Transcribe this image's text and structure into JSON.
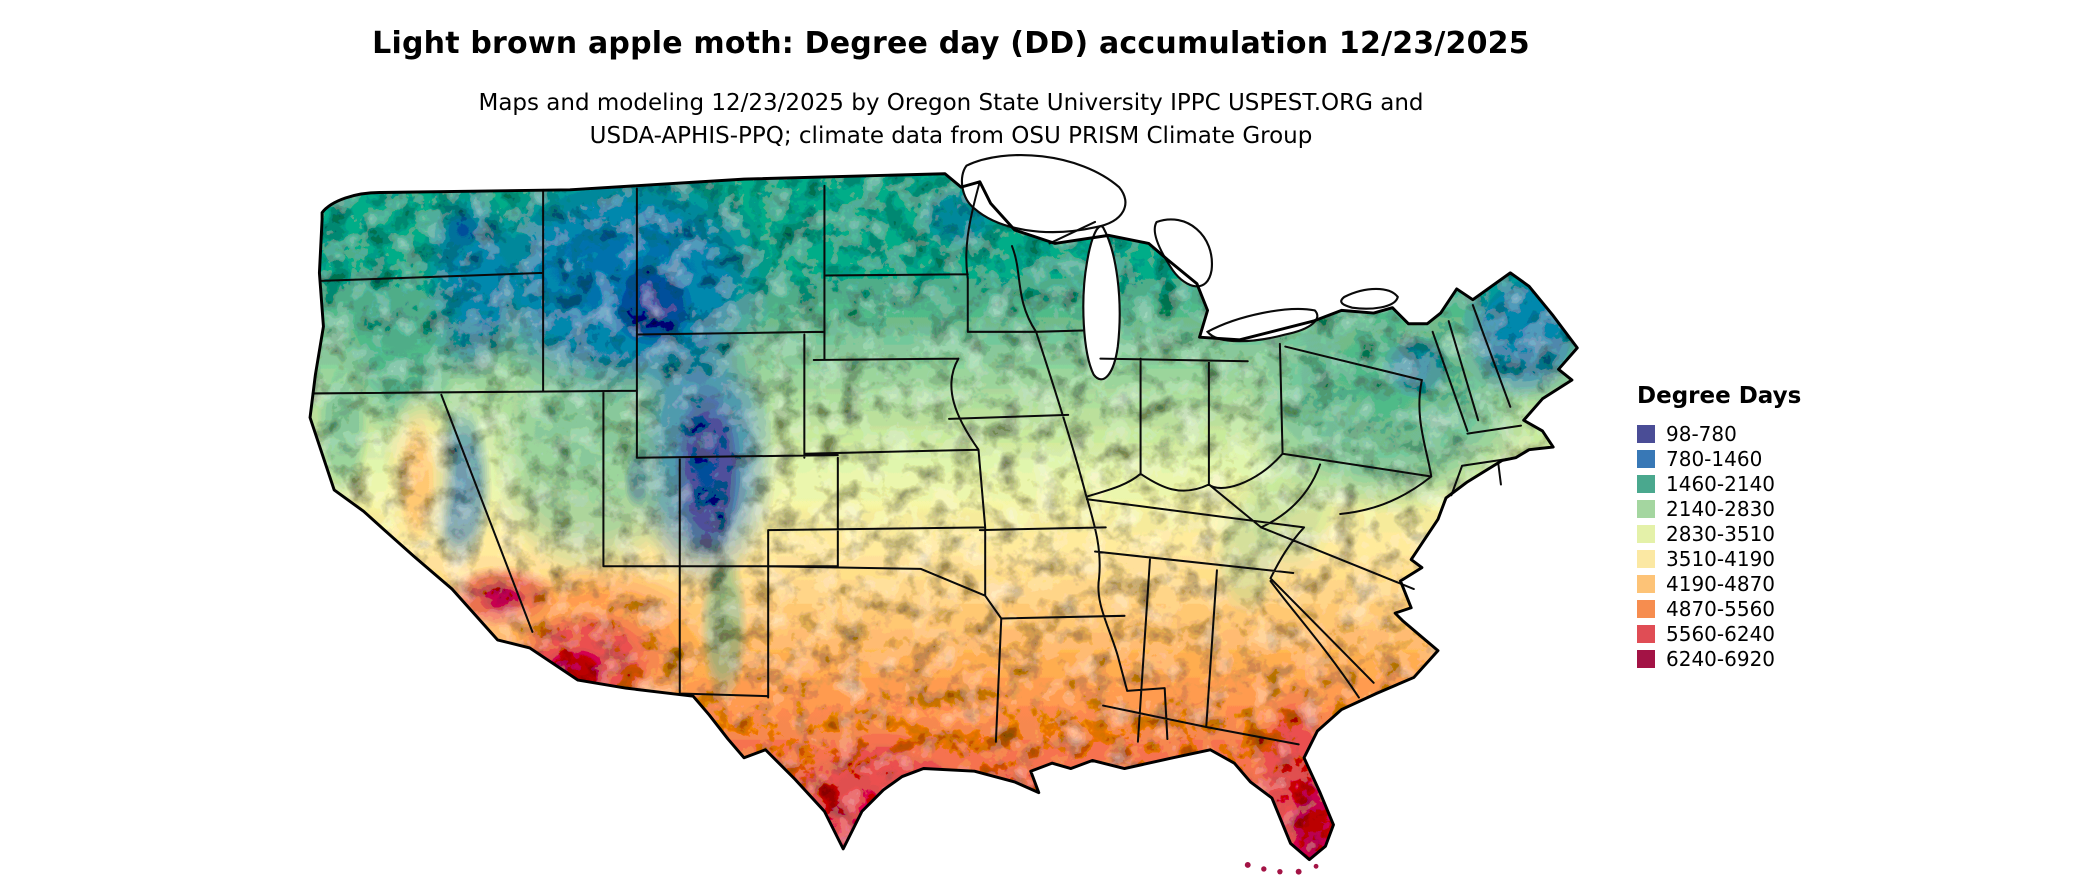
{
  "header": {
    "title": "Light brown apple moth: Degree day (DD) accumulation 12/23/2025",
    "subtitle_line1": "Maps and modeling 12/23/2025 by Oregon State University IPPC USPEST.ORG and",
    "subtitle_line2": "USDA-APHIS-PPQ; climate data from OSU PRISM Climate Group"
  },
  "legend": {
    "title": "Degree Days",
    "items": [
      {
        "label": "98-780",
        "color": "#4a4d96"
      },
      {
        "label": "780-1460",
        "color": "#3878b6"
      },
      {
        "label": "1460-2140",
        "color": "#4aa88e"
      },
      {
        "label": "2140-2830",
        "color": "#a4d6a0"
      },
      {
        "label": "2830-3510",
        "color": "#e4f1a9"
      },
      {
        "label": "3510-4190",
        "color": "#fbe8a3"
      },
      {
        "label": "4190-4870",
        "color": "#fdc377"
      },
      {
        "label": "4870-5560",
        "color": "#f68d4f"
      },
      {
        "label": "5560-6240",
        "color": "#e04d55"
      },
      {
        "label": "6240-6920",
        "color": "#a31345"
      }
    ]
  },
  "map": {
    "region": "Contiguous United States"
  }
}
